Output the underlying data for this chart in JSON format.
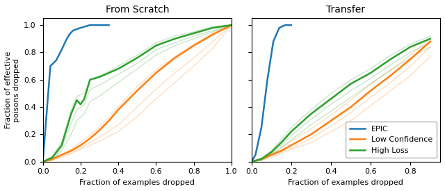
{
  "title_left": "From Scratch",
  "title_right": "Transfer",
  "xlabel": "Fraction of examples dropped",
  "ylabel": "Fraction of effective\npoisons dropped",
  "colors": {
    "epic": "#1f77b4",
    "low_conf": "#ff7f0e",
    "high_loss": "#2ca02c"
  },
  "legend_labels": [
    "EPIC",
    "Low Confidence",
    "High Loss"
  ],
  "scratch": {
    "epic": {
      "x": [
        0.0,
        0.04,
        0.07,
        0.1,
        0.12,
        0.14,
        0.16,
        0.2,
        0.25,
        0.3,
        0.35
      ],
      "y": [
        0.0,
        0.7,
        0.74,
        0.82,
        0.88,
        0.93,
        0.96,
        0.98,
        1.0,
        1.0,
        1.0
      ]
    },
    "low_conf_main": {
      "x": [
        0.0,
        0.05,
        0.1,
        0.15,
        0.2,
        0.25,
        0.3,
        0.35,
        0.4,
        0.5,
        0.6,
        0.7,
        0.8,
        0.9,
        1.0
      ],
      "y": [
        0.0,
        0.02,
        0.05,
        0.08,
        0.12,
        0.17,
        0.23,
        0.3,
        0.38,
        0.52,
        0.65,
        0.76,
        0.85,
        0.93,
        1.0
      ]
    },
    "low_conf_shadows": [
      {
        "x": [
          0.0,
          0.05,
          0.1,
          0.15,
          0.2,
          0.3,
          0.4,
          0.5,
          0.6,
          0.7,
          0.8,
          0.9,
          1.0
        ],
        "y": [
          0.0,
          0.02,
          0.05,
          0.09,
          0.14,
          0.25,
          0.4,
          0.55,
          0.67,
          0.77,
          0.86,
          0.94,
          1.0
        ]
      },
      {
        "x": [
          0.0,
          0.05,
          0.1,
          0.15,
          0.2,
          0.3,
          0.4,
          0.5,
          0.6,
          0.7,
          0.8,
          0.9,
          1.0
        ],
        "y": [
          0.0,
          0.01,
          0.04,
          0.07,
          0.1,
          0.18,
          0.27,
          0.4,
          0.53,
          0.65,
          0.76,
          0.88,
          1.0
        ]
      },
      {
        "x": [
          0.0,
          0.05,
          0.1,
          0.15,
          0.2,
          0.3,
          0.4,
          0.5,
          0.6,
          0.7,
          0.8,
          0.9,
          1.0
        ],
        "y": [
          0.0,
          0.01,
          0.03,
          0.06,
          0.09,
          0.15,
          0.22,
          0.33,
          0.46,
          0.58,
          0.7,
          0.83,
          1.0
        ]
      }
    ],
    "high_loss_main": {
      "x": [
        0.0,
        0.05,
        0.1,
        0.15,
        0.18,
        0.2,
        0.22,
        0.25,
        0.3,
        0.35,
        0.4,
        0.5,
        0.6,
        0.7,
        0.8,
        0.9,
        1.0
      ],
      "y": [
        0.0,
        0.03,
        0.12,
        0.35,
        0.45,
        0.42,
        0.46,
        0.6,
        0.62,
        0.65,
        0.68,
        0.76,
        0.85,
        0.9,
        0.94,
        0.98,
        1.0
      ]
    },
    "high_loss_shadows": [
      {
        "x": [
          0.0,
          0.05,
          0.1,
          0.15,
          0.18,
          0.22,
          0.25,
          0.3,
          0.35,
          0.4,
          0.5,
          0.6,
          0.7,
          0.8,
          0.9,
          1.0
        ],
        "y": [
          0.0,
          0.02,
          0.1,
          0.28,
          0.38,
          0.42,
          0.53,
          0.56,
          0.6,
          0.64,
          0.72,
          0.82,
          0.87,
          0.92,
          0.96,
          1.0
        ]
      },
      {
        "x": [
          0.0,
          0.05,
          0.1,
          0.15,
          0.18,
          0.22,
          0.25,
          0.3,
          0.35,
          0.4,
          0.5,
          0.6,
          0.7,
          0.8,
          0.9,
          1.0
        ],
        "y": [
          0.0,
          0.04,
          0.14,
          0.38,
          0.48,
          0.5,
          0.6,
          0.63,
          0.66,
          0.7,
          0.78,
          0.87,
          0.92,
          0.95,
          0.99,
          1.0
        ]
      },
      {
        "x": [
          0.0,
          0.05,
          0.1,
          0.15,
          0.18,
          0.22,
          0.25,
          0.3,
          0.35,
          0.4,
          0.5,
          0.6,
          0.7,
          0.8,
          0.9,
          1.0
        ],
        "y": [
          0.0,
          0.01,
          0.08,
          0.2,
          0.3,
          0.35,
          0.44,
          0.48,
          0.53,
          0.58,
          0.68,
          0.78,
          0.85,
          0.9,
          0.95,
          1.0
        ]
      }
    ]
  },
  "transfer": {
    "epic": {
      "x": [
        0.0,
        0.02,
        0.05,
        0.08,
        0.11,
        0.14,
        0.17,
        0.2
      ],
      "y": [
        0.0,
        0.05,
        0.25,
        0.6,
        0.88,
        0.98,
        1.0,
        1.0
      ]
    },
    "low_conf_main": {
      "x": [
        0.0,
        0.05,
        0.1,
        0.15,
        0.2,
        0.3,
        0.4,
        0.5,
        0.6,
        0.7,
        0.8,
        0.9
      ],
      "y": [
        0.0,
        0.02,
        0.05,
        0.08,
        0.12,
        0.2,
        0.3,
        0.4,
        0.52,
        0.63,
        0.75,
        0.88
      ]
    },
    "low_conf_shadows": [
      {
        "x": [
          0.0,
          0.05,
          0.1,
          0.15,
          0.2,
          0.3,
          0.4,
          0.5,
          0.6,
          0.7,
          0.8,
          0.9
        ],
        "y": [
          0.0,
          0.02,
          0.06,
          0.1,
          0.15,
          0.24,
          0.34,
          0.45,
          0.57,
          0.67,
          0.78,
          0.9
        ]
      },
      {
        "x": [
          0.0,
          0.05,
          0.1,
          0.15,
          0.2,
          0.3,
          0.4,
          0.5,
          0.6,
          0.7,
          0.8,
          0.9
        ],
        "y": [
          0.0,
          0.01,
          0.04,
          0.07,
          0.1,
          0.17,
          0.26,
          0.36,
          0.47,
          0.58,
          0.7,
          0.84
        ]
      },
      {
        "x": [
          0.0,
          0.05,
          0.1,
          0.15,
          0.2,
          0.3,
          0.4,
          0.5,
          0.6,
          0.7,
          0.8,
          0.9
        ],
        "y": [
          0.0,
          0.01,
          0.03,
          0.06,
          0.09,
          0.14,
          0.22,
          0.3,
          0.41,
          0.52,
          0.63,
          0.77
        ]
      }
    ],
    "high_loss_main": {
      "x": [
        0.0,
        0.05,
        0.1,
        0.15,
        0.2,
        0.3,
        0.4,
        0.5,
        0.6,
        0.7,
        0.8,
        0.9
      ],
      "y": [
        0.0,
        0.02,
        0.07,
        0.14,
        0.22,
        0.35,
        0.46,
        0.57,
        0.65,
        0.75,
        0.84,
        0.9
      ]
    },
    "high_loss_shadows": [
      {
        "x": [
          0.0,
          0.05,
          0.1,
          0.15,
          0.2,
          0.3,
          0.4,
          0.5,
          0.6,
          0.7,
          0.8,
          0.9
        ],
        "y": [
          0.0,
          0.01,
          0.06,
          0.12,
          0.19,
          0.31,
          0.42,
          0.52,
          0.61,
          0.71,
          0.8,
          0.87
        ]
      },
      {
        "x": [
          0.0,
          0.05,
          0.1,
          0.15,
          0.2,
          0.3,
          0.4,
          0.5,
          0.6,
          0.7,
          0.8,
          0.9
        ],
        "y": [
          0.0,
          0.02,
          0.08,
          0.16,
          0.25,
          0.38,
          0.5,
          0.6,
          0.68,
          0.78,
          0.86,
          0.92
        ]
      },
      {
        "x": [
          0.0,
          0.05,
          0.1,
          0.15,
          0.2,
          0.3,
          0.4,
          0.5,
          0.6,
          0.7,
          0.8,
          0.9
        ],
        "y": [
          0.0,
          0.01,
          0.05,
          0.1,
          0.16,
          0.27,
          0.37,
          0.47,
          0.57,
          0.67,
          0.76,
          0.84
        ]
      }
    ]
  },
  "xlim_scratch": [
    0.0,
    1.0
  ],
  "xlim_transfer": [
    0.0,
    0.95
  ],
  "ylim": [
    0.0,
    1.05
  ],
  "shadow_alpha": 0.25,
  "main_lw": 1.8,
  "shadow_lw": 1.0
}
